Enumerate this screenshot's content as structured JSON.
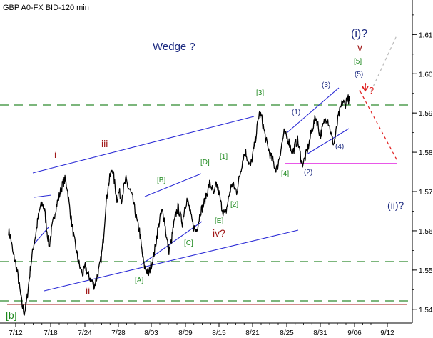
{
  "chart_data": {
    "type": "line",
    "title": "GBP A0-FX BID-120 min",
    "x_tick_labels": [
      "7/12",
      "7/18",
      "7/24",
      "7/28",
      "8/03",
      "8/09",
      "8/15",
      "8/21",
      "8/25",
      "8/31",
      "9/06",
      "9/12"
    ],
    "y_tick_labels": [
      "1.54",
      "1.55",
      "1.56",
      "1.57",
      "1.58",
      "1.59",
      "1.60",
      "1.61"
    ],
    "ylim": [
      1.5365,
      1.6188
    ],
    "xlim": [
      0,
      200
    ],
    "grid": false,
    "series": [
      {
        "price_points": [
          [
            0,
            1.56
          ],
          [
            1,
            1.558
          ],
          [
            2,
            1.554
          ],
          [
            3,
            1.552
          ],
          [
            4,
            1.549
          ],
          [
            5,
            1.545
          ],
          [
            6,
            1.541
          ],
          [
            7,
            1.539
          ],
          [
            8,
            1.542
          ],
          [
            9,
            1.547
          ],
          [
            10,
            1.552
          ],
          [
            11,
            1.556
          ],
          [
            12,
            1.559
          ],
          [
            13,
            1.563
          ],
          [
            14,
            1.566
          ],
          [
            15,
            1.567
          ],
          [
            16,
            1.565
          ],
          [
            17,
            1.56
          ],
          [
            18,
            1.556
          ],
          [
            19,
            1.56
          ],
          [
            20,
            1.563
          ],
          [
            21,
            1.566
          ],
          [
            22,
            1.568
          ],
          [
            23,
            1.57
          ],
          [
            24,
            1.572
          ],
          [
            25,
            1.573
          ],
          [
            26,
            1.571
          ],
          [
            27,
            1.566
          ],
          [
            28,
            1.562
          ],
          [
            29,
            1.558
          ],
          [
            30,
            1.555
          ],
          [
            31,
            1.552
          ],
          [
            32,
            1.55
          ],
          [
            33,
            1.549
          ],
          [
            34,
            1.551
          ],
          [
            35,
            1.549
          ],
          [
            36,
            1.548
          ],
          [
            37,
            1.547
          ],
          [
            38,
            1.546
          ],
          [
            39,
            1.548
          ],
          [
            40,
            1.55
          ],
          [
            41,
            1.553
          ],
          [
            42,
            1.558
          ],
          [
            43,
            1.566
          ],
          [
            44,
            1.571
          ],
          [
            45,
            1.574
          ],
          [
            46,
            1.576
          ],
          [
            47,
            1.572
          ],
          [
            48,
            1.568
          ],
          [
            49,
            1.57
          ],
          [
            50,
            1.568
          ],
          [
            51,
            1.571
          ],
          [
            52,
            1.573
          ],
          [
            53,
            1.571
          ],
          [
            54,
            1.57
          ],
          [
            55,
            1.568
          ],
          [
            56,
            1.565
          ],
          [
            57,
            1.562
          ],
          [
            58,
            1.56
          ],
          [
            59,
            1.555
          ],
          [
            60,
            1.551
          ],
          [
            61,
            1.55
          ],
          [
            62,
            1.549
          ],
          [
            63,
            1.551
          ],
          [
            64,
            1.553
          ],
          [
            65,
            1.556
          ],
          [
            66,
            1.56
          ],
          [
            67,
            1.563
          ],
          [
            68,
            1.565
          ],
          [
            69,
            1.563
          ],
          [
            70,
            1.558
          ],
          [
            71,
            1.555
          ],
          [
            72,
            1.557
          ],
          [
            73,
            1.561
          ],
          [
            74,
            1.564
          ],
          [
            75,
            1.566
          ],
          [
            76,
            1.564
          ],
          [
            77,
            1.562
          ],
          [
            78,
            1.566
          ],
          [
            79,
            1.568
          ],
          [
            80,
            1.566
          ],
          [
            81,
            1.563
          ],
          [
            82,
            1.561
          ],
          [
            83,
            1.56
          ],
          [
            84,
            1.562
          ],
          [
            85,
            1.565
          ],
          [
            86,
            1.566
          ],
          [
            87,
            1.568
          ],
          [
            88,
            1.57
          ],
          [
            89,
            1.572
          ],
          [
            90,
            1.571
          ],
          [
            91,
            1.569
          ],
          [
            92,
            1.572
          ],
          [
            93,
            1.57
          ],
          [
            94,
            1.567
          ],
          [
            95,
            1.565
          ],
          [
            96,
            1.564
          ],
          [
            97,
            1.567
          ],
          [
            98,
            1.57
          ],
          [
            99,
            1.572
          ],
          [
            100,
            1.571
          ],
          [
            101,
            1.57
          ],
          [
            102,
            1.573
          ],
          [
            103,
            1.576
          ],
          [
            104,
            1.579
          ],
          [
            105,
            1.58
          ],
          [
            106,
            1.578
          ],
          [
            107,
            1.576
          ],
          [
            108,
            1.579
          ],
          [
            109,
            1.582
          ],
          [
            110,
            1.586
          ],
          [
            111,
            1.59
          ],
          [
            112,
            1.589
          ],
          [
            113,
            1.586
          ],
          [
            114,
            1.583
          ],
          [
            115,
            1.581
          ],
          [
            116,
            1.579
          ],
          [
            117,
            1.578
          ],
          [
            118,
            1.576
          ],
          [
            119,
            1.576
          ],
          [
            120,
            1.579
          ],
          [
            121,
            1.582
          ],
          [
            122,
            1.585
          ],
          [
            123,
            1.584
          ],
          [
            124,
            1.583
          ],
          [
            125,
            1.581
          ],
          [
            126,
            1.58
          ],
          [
            127,
            1.582
          ],
          [
            128,
            1.583
          ],
          [
            129,
            1.58
          ],
          [
            130,
            1.577
          ],
          [
            131,
            1.578
          ],
          [
            132,
            1.58
          ],
          [
            133,
            1.582
          ],
          [
            134,
            1.585
          ],
          [
            135,
            1.587
          ],
          [
            136,
            1.589
          ],
          [
            137,
            1.587
          ],
          [
            138,
            1.584
          ],
          [
            139,
            1.586
          ],
          [
            140,
            1.588
          ],
          [
            141,
            1.589
          ],
          [
            142,
            1.587
          ],
          [
            143,
            1.584
          ],
          [
            144,
            1.582
          ],
          [
            145,
            1.585
          ],
          [
            146,
            1.589
          ],
          [
            147,
            1.591
          ],
          [
            148,
            1.593
          ],
          [
            149,
            1.592
          ],
          [
            150,
            1.594
          ],
          [
            151,
            1.593
          ]
        ],
        "noise": 0.0012
      }
    ],
    "annotations": {
      "wedge_label": "Wedge ?",
      "wave_b_label": "[b]",
      "wave_i_label": "i",
      "wave_ii_label": "ii",
      "wave_iii_label": "iii",
      "wave_iv_label": "iv?",
      "wave_A_label": "[A]",
      "wave_B_label": "[B]",
      "wave_C_label": "[C]",
      "wave_D_label": "[D]",
      "wave_E_label": "[E]",
      "wave_1_label": "[1]",
      "wave_2_label": "[2]",
      "wave_3_label": "[3]",
      "wave_4_label": "[4]",
      "wave_5_label": "[5]",
      "wave_p1_label": "(1)",
      "wave_p2_label": "(2)",
      "wave_p3_label": "(3)",
      "wave_p4_label": "(4)",
      "wave_p5_label": "(5)",
      "wave_top_i_label": "(i)?",
      "wave_top_v_label": "v",
      "wave_top_ii_label": "(ii)?",
      "arrow_q_label": "?"
    },
    "colors": {
      "price": "#000000",
      "trend_line": "#2b2bd6",
      "dashed_level": "#2e8b2e",
      "magenta_level": "#e020e0",
      "red_forecast": "#e02020",
      "grey_forecast": "#bbbbbb",
      "label_red": "#a01818",
      "label_green": "#1f8a1f",
      "label_navy": "#1c2a80",
      "bottom_line": "#a01818"
    }
  }
}
